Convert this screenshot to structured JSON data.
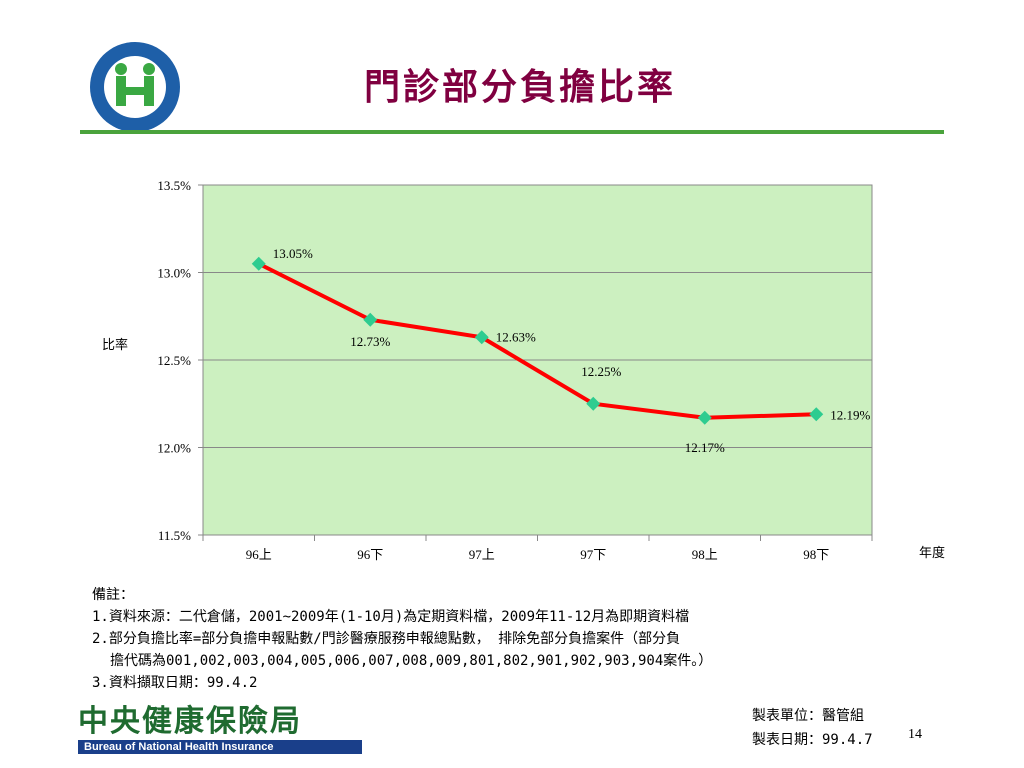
{
  "slide": {
    "title": "門診部分負擔比率",
    "logo_text": "全民健康保險",
    "logo_ring_text": "NATIONAL HEALTH INSURANCE"
  },
  "chart_data": {
    "type": "line",
    "categories": [
      "96上",
      "96下",
      "97上",
      "97下",
      "98上",
      "98下"
    ],
    "values": [
      13.05,
      12.73,
      12.63,
      12.25,
      12.17,
      12.19
    ],
    "data_labels": [
      "13.05%",
      "12.73%",
      "12.63%",
      "12.25%",
      "12.17%",
      "12.19%"
    ],
    "ylabel": "比率",
    "xlabel": "年度",
    "ylim": [
      11.5,
      13.5
    ],
    "yticks": [
      "11.5%",
      "12.0%",
      "12.5%",
      "13.0%",
      "13.5%"
    ],
    "grid": true,
    "plot_bg": "#ccf0c0",
    "line_color": "#ff0000",
    "marker_color": "#2ecc90"
  },
  "notes": {
    "heading": "備註：",
    "line1": "1.資料來源：二代倉儲，2001~2009年(1-10月)為定期資料檔，2009年11-12月為即期資料檔",
    "line2a": "2.部分負擔比率=部分負擔申報點數/門診醫療服務申報總點數， 排除免部分負擔案件（部分負",
    "line2b": "擔代碼為001,002,003,004,005,006,007,008,009,801,802,901,902,903,904案件。）",
    "line3": "3.資料擷取日期：99.4.2"
  },
  "footer": {
    "maker_unit": "製表單位：醫管組",
    "maker_date": "製表日期：99.4.7",
    "page": "14",
    "bureau_cn": "中央健康保險局",
    "bureau_en": "Bureau of National Health Insurance"
  }
}
